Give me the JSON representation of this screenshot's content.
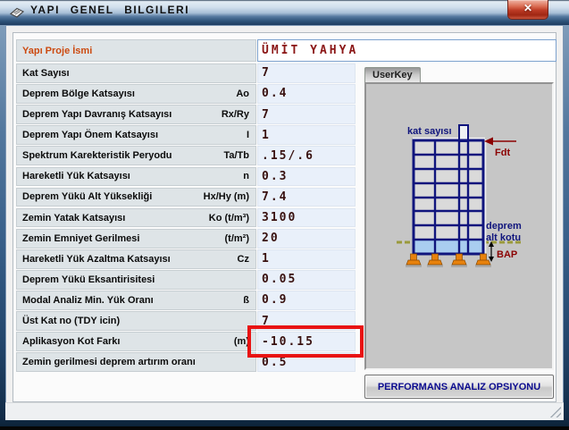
{
  "window": {
    "title": "YAPI GENEL BILGILERI"
  },
  "icons": {
    "close": "✕"
  },
  "form": {
    "rows": [
      {
        "label": "Yapı Proje İsmi",
        "symbol": "",
        "value": "ÜMİT YAHYA",
        "wide": true,
        "accent": true
      },
      {
        "label": "Kat Sayısı",
        "symbol": "",
        "value": "7"
      },
      {
        "label": "Deprem Bölge Katsayısı",
        "symbol": "Ao",
        "value": "0.4"
      },
      {
        "label": "Deprem Yapı Davranış Katsayısı",
        "symbol": "Rx/Ry",
        "value": "7"
      },
      {
        "label": "Deprem Yapı Önem Katsayısı",
        "symbol": "I",
        "value": "1"
      },
      {
        "label": "Spektrum Karekteristik Peryodu",
        "symbol": "Ta/Tb",
        "value": ".15/.6"
      },
      {
        "label": "Hareketli Yük Katsayısı",
        "symbol": "n",
        "value": "0.3"
      },
      {
        "label": "Deprem Yükü Alt Yüksekliği",
        "symbol": "Hx/Hy (m)",
        "value": "7.4"
      },
      {
        "label": "Zemin Yatak Katsayısı",
        "symbol": "Ko (t/m³)",
        "value": "3100"
      },
      {
        "label": "Zemin Emniyet Gerilmesi",
        "symbol": "(t/m²)",
        "value": "20"
      },
      {
        "label": "Hareketli Yük Azaltma Katsayısı",
        "symbol": "Cz",
        "value": "1"
      },
      {
        "label": "Deprem Yükü Eksantirisitesi",
        "symbol": "",
        "value": "0.05"
      },
      {
        "label": "Modal Analiz Min. Yük Oranı",
        "symbol": "ß",
        "value": "0.9"
      },
      {
        "label": "Üst Kat no (TDY icin)",
        "symbol": "",
        "value": "7"
      },
      {
        "label": "Aplikasyon Kot Farkı",
        "symbol": "(m)",
        "value": "-10.15",
        "highlighted": true
      },
      {
        "label": "Zemin gerilmesi deprem artırım oranı",
        "symbol": "",
        "value": "0.5"
      }
    ]
  },
  "right_panel": {
    "tab_label": "UserKey",
    "diagram": {
      "kat_sayisi_label": "kat sayısı",
      "fdt_label": "Fdt",
      "deprem_alt_kotu_line1": "deprem",
      "deprem_alt_kotu_line2": "alt kotu",
      "bap_label": "BAP"
    },
    "button_label": "PERFORMANS ANALIZ OPSIYONU"
  },
  "colors": {
    "highlight_box": "#e81313",
    "accent_label": "#cc4a10",
    "project_name_text": "#8b1616",
    "value_text": "#38100e",
    "diagram_navy": "#10157d",
    "diagram_dark_red": "#8b0000",
    "footing_orange": "#e8820c",
    "basement_blue": "#a9cdf0"
  }
}
